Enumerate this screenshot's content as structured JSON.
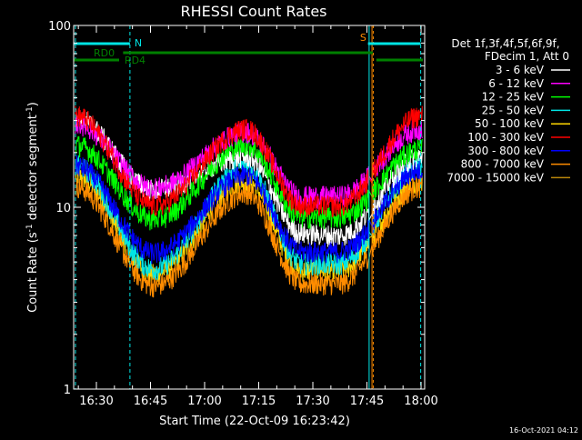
{
  "chart_data": {
    "type": "line",
    "title": "RHESSI Count Rates",
    "xlabel": "Start Time (22-Oct-09 16:23:42)",
    "ylabel_main": "Count Rate (s",
    "ylabel_sup1": "-1",
    "ylabel_mid": " detector segment",
    "ylabel_sup2": "-1",
    "ylabel_end": ")",
    "y_scale": "log",
    "ylim": [
      1,
      100
    ],
    "xlim_minutes_after_16_00": [
      23.7,
      121.0
    ],
    "y_ticks": [
      {
        "value": 1,
        "label": "1"
      },
      {
        "value": 10,
        "label": "10"
      },
      {
        "value": 100,
        "label": "100"
      }
    ],
    "x_ticks": [
      {
        "minutes": 30,
        "label": "16:30"
      },
      {
        "minutes": 45,
        "label": "16:45"
      },
      {
        "minutes": 60,
        "label": "17:00"
      },
      {
        "minutes": 75,
        "label": "17:15"
      },
      {
        "minutes": 90,
        "label": "17:30"
      },
      {
        "minutes": 105,
        "label": "17:45"
      },
      {
        "minutes": 120,
        "label": "18:00"
      }
    ],
    "legend_header": [
      "Det 1f,3f,4f,5f,6f,9f,",
      "FDecim 1, Att 0"
    ],
    "legend_placement": "right",
    "series": [
      {
        "name": "3 - 6 keV",
        "color": "#ffffff",
        "key": [
          31,
          12.5,
          19,
          7.2,
          7.0,
          19
        ]
      },
      {
        "name": "6 - 12 keV",
        "color": "#ff00ff",
        "key": [
          29,
          12.8,
          26,
          11.5,
          11.5,
          27
        ]
      },
      {
        "name": "12 - 25 keV",
        "color": "#00ff00",
        "key": [
          22,
          8.6,
          22,
          8.8,
          8.8,
          21
        ]
      },
      {
        "name": "25 - 50 keV",
        "color": "#00e5e5",
        "key": [
          17,
          4.6,
          17,
          4.9,
          4.9,
          17
        ]
      },
      {
        "name": "50 - 100 keV",
        "color": "#ffd700",
        "key": [
          15,
          4.3,
          14,
          4.5,
          4.5,
          14
        ]
      },
      {
        "name": "100 - 300 keV",
        "color": "#ff0000",
        "key": [
          32,
          10.2,
          27,
          10.2,
          10.2,
          32
        ]
      },
      {
        "name": "300 - 800 keV",
        "color": "#0000ff",
        "key": [
          17,
          5.6,
          15,
          5.7,
          5.7,
          16
        ]
      },
      {
        "name": "800 - 7000 keV",
        "color": "#ff8c00",
        "key": [
          13,
          3.7,
          12,
          3.8,
          3.8,
          13
        ]
      },
      {
        "name": "7000 - 15000 keV",
        "color": "#b8860b",
        "key": [
          0,
          0,
          0,
          0,
          0,
          0
        ]
      }
    ],
    "annotations": {
      "n_label": "N",
      "s_label": "S",
      "rd0_label": "RD0",
      "rd4_label": "RD4"
    },
    "timestamp": "16-Oct-2021 04:12"
  }
}
